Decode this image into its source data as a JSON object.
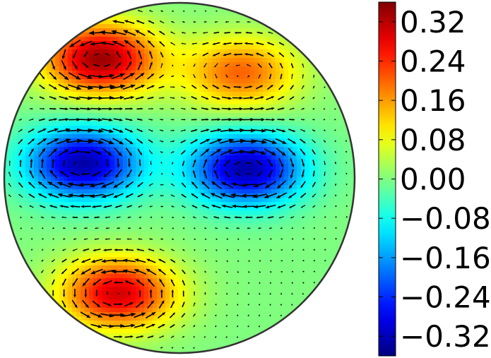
{
  "chart_data": {
    "type": "heatmap",
    "subtype": "circular-domain field with quiver (vector) overlay",
    "title": "",
    "xlabel": "",
    "ylabel": "",
    "colormap": "jet",
    "colorbar": {
      "range": [
        -0.36,
        0.36
      ],
      "ticks": [
        0.32,
        0.24,
        0.16,
        0.08,
        0.0,
        -0.08,
        -0.16,
        -0.24,
        -0.32
      ],
      "tick_labels": [
        "0.32",
        "0.24",
        "0.16",
        "0.08",
        "0.00",
        "−0.08",
        "−0.16",
        "−0.24",
        "−0.32"
      ],
      "placement": "right"
    },
    "domain": {
      "shape": "disk",
      "x_range": [
        -1,
        1
      ],
      "y_range": [
        -1,
        1
      ]
    },
    "field_features": [
      {
        "kind": "max",
        "x": -0.45,
        "y": 0.68,
        "value": 0.34
      },
      {
        "kind": "max",
        "x": 0.35,
        "y": 0.6,
        "value": 0.2
      },
      {
        "kind": "max",
        "x": -0.35,
        "y": -0.66,
        "value": 0.3
      },
      {
        "kind": "min",
        "x": -0.55,
        "y": 0.08,
        "value": -0.33
      },
      {
        "kind": "min",
        "x": 0.38,
        "y": 0.05,
        "value": -0.33
      }
    ],
    "quiver": {
      "grid_spacing": 0.062,
      "color": "#000000"
    },
    "grid": false,
    "legend": "none"
  }
}
